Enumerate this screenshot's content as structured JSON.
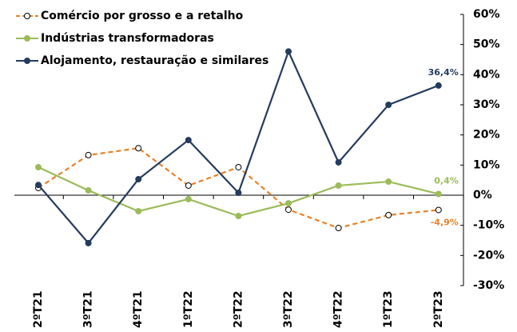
{
  "chart_data": {
    "type": "line",
    "categories": [
      "2ºT21",
      "3ºT21",
      "4ºT21",
      "1ºT22",
      "2ºT22",
      "3ºT22",
      "4ºT22",
      "1ºT23",
      "2ºT23"
    ],
    "series": [
      {
        "name": "Comércio por grosso e a retalho",
        "color": "#e8822a",
        "dash": true,
        "marker_fill": "#ffffff",
        "values": [
          2.4,
          13.3,
          15.6,
          3.2,
          9.3,
          -4.8,
          -10.9,
          -6.6,
          -4.9
        ],
        "value_labels": [
          null,
          null,
          null,
          null,
          null,
          null,
          null,
          null,
          "-4,9%"
        ]
      },
      {
        "name": "Indústrias transformadoras",
        "color": "#9bbb59",
        "dash": false,
        "marker_fill": "#9bbb59",
        "values": [
          9.3,
          1.6,
          -5.3,
          -1.3,
          -6.9,
          -2.7,
          3.2,
          4.5,
          0.4
        ],
        "value_labels": [
          null,
          null,
          null,
          null,
          null,
          null,
          null,
          null,
          "0,4%"
        ]
      },
      {
        "name": "Alojamento, restauração e similares",
        "color": "#243b5e",
        "dash": false,
        "marker_fill": "#243b5e",
        "values": [
          3.4,
          -15.9,
          5.3,
          18.3,
          0.8,
          47.7,
          10.9,
          30.0,
          36.4
        ],
        "value_labels": [
          null,
          null,
          null,
          null,
          null,
          null,
          null,
          null,
          "36,4%"
        ]
      }
    ],
    "ylim": [
      -30,
      60
    ],
    "yticks": [
      {
        "value": -30,
        "label": "-30%"
      },
      {
        "value": -20,
        "label": "-20%"
      },
      {
        "value": -10,
        "label": "-10%"
      },
      {
        "value": 0,
        "label": "0%"
      },
      {
        "value": 10,
        "label": "10%"
      },
      {
        "value": 20,
        "label": "20%"
      },
      {
        "value": 30,
        "label": "30%"
      },
      {
        "value": 40,
        "label": "40%"
      },
      {
        "value": 50,
        "label": "50%"
      },
      {
        "value": 60,
        "label": "60%"
      }
    ],
    "y_axis_side": "right",
    "legend": "upper left",
    "grid": false
  }
}
